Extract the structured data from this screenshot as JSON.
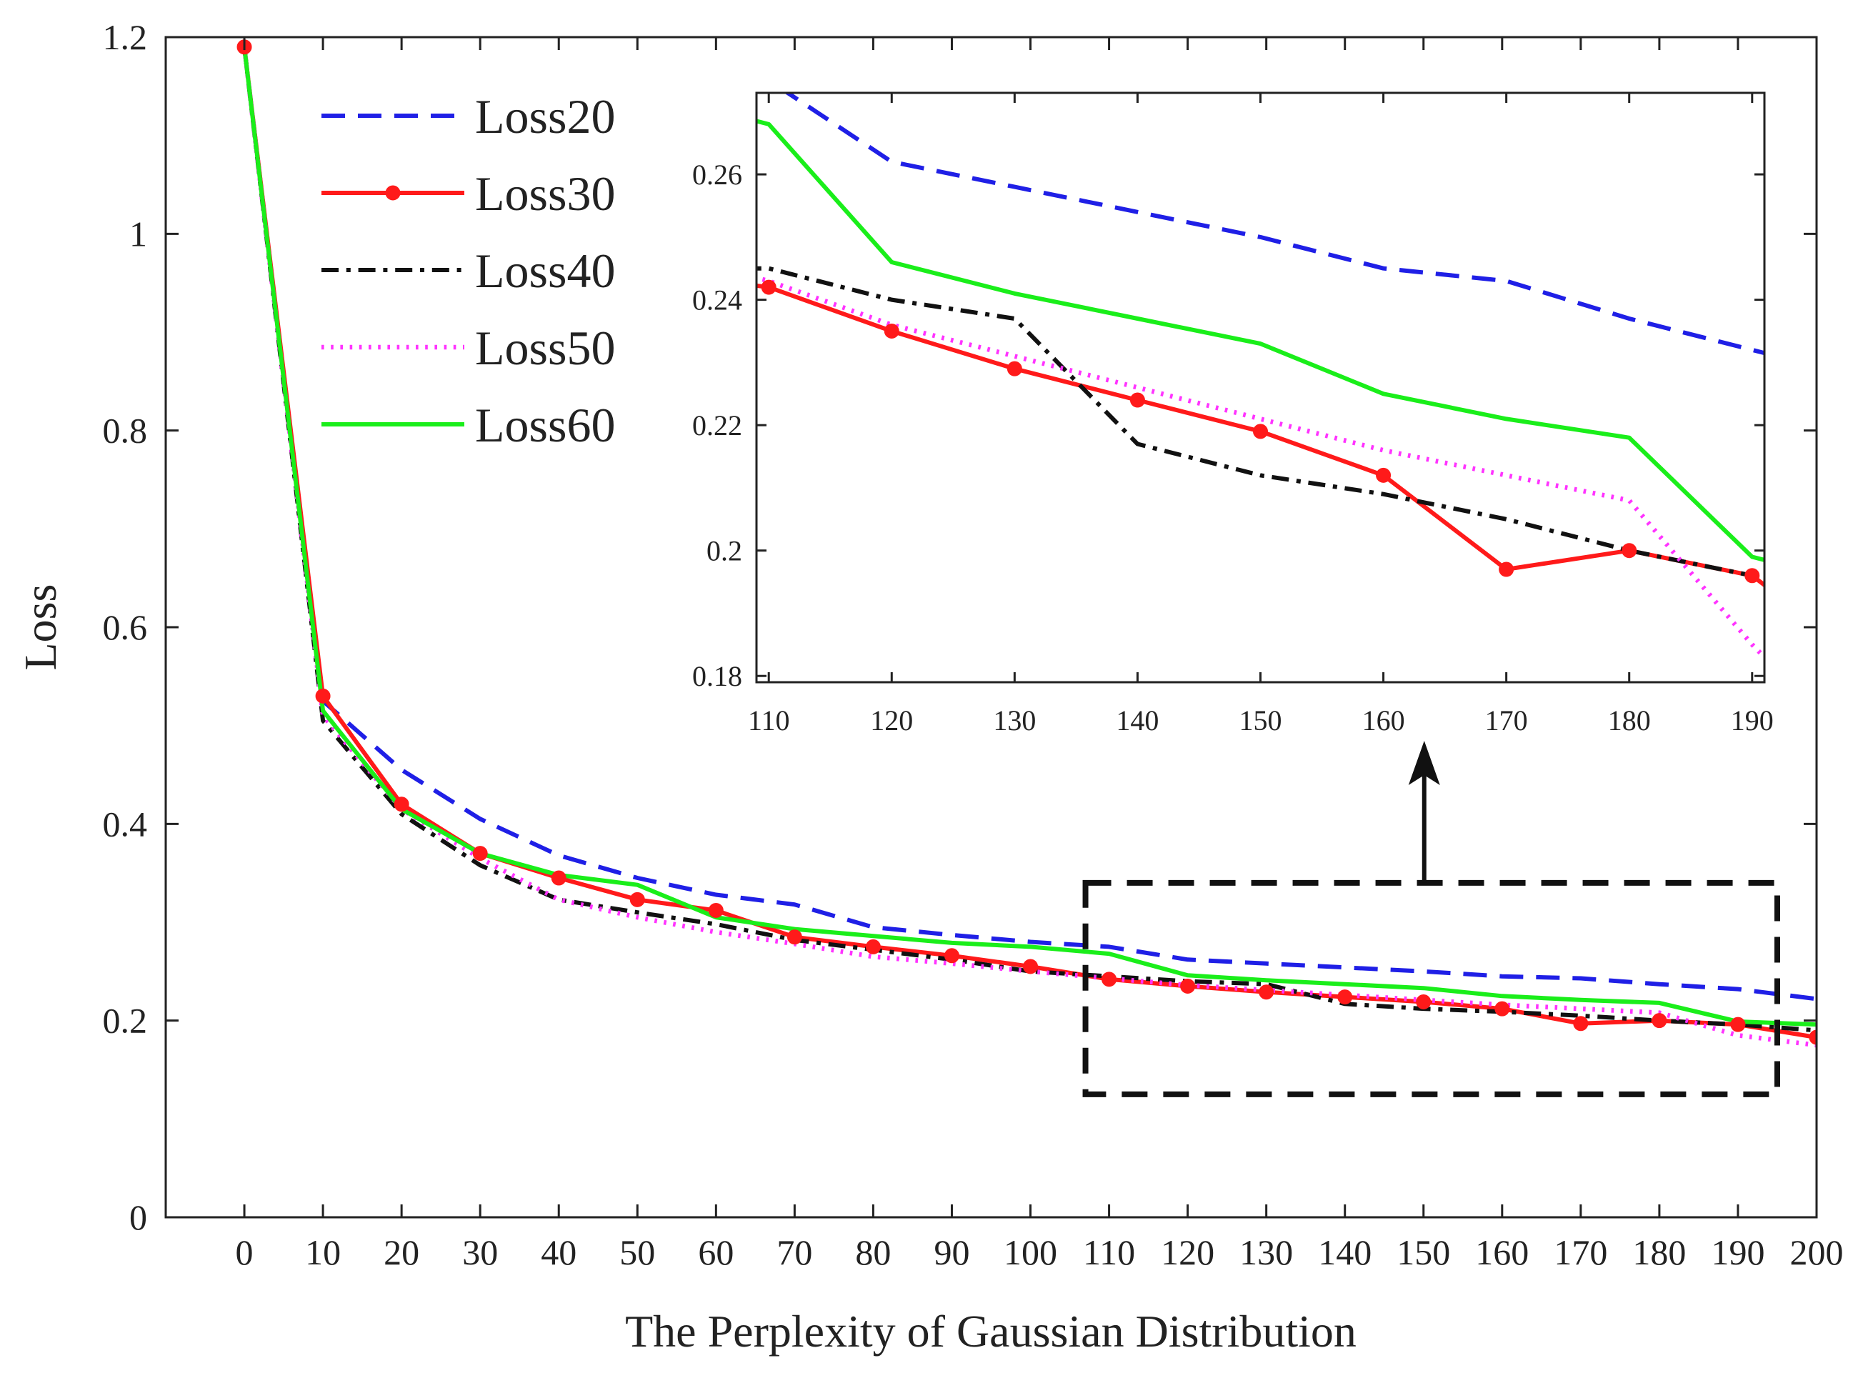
{
  "chart_data": {
    "type": "line",
    "title": "",
    "xlabel": "The Perplexity of Gaussian Distribution",
    "ylabel": "Loss",
    "xlim": [
      -10,
      200
    ],
    "ylim": [
      0,
      1.2
    ],
    "x": [
      0,
      10,
      20,
      30,
      40,
      50,
      60,
      70,
      80,
      90,
      100,
      110,
      120,
      130,
      140,
      150,
      160,
      170,
      180,
      190,
      200
    ],
    "xticks": [
      "0",
      "10",
      "20",
      "30",
      "40",
      "50",
      "60",
      "70",
      "80",
      "90",
      "100",
      "110",
      "120",
      "130",
      "140",
      "150",
      "160",
      "170",
      "180",
      "190",
      "200"
    ],
    "yticks": [
      "0",
      "0.2",
      "0.4",
      "0.6",
      "0.8",
      "1",
      "1.2"
    ],
    "series": [
      {
        "name": "Loss20",
        "color": "#1f1fe6",
        "style": "dashed",
        "values": [
          1.19,
          0.525,
          0.455,
          0.405,
          0.368,
          0.345,
          0.328,
          0.318,
          0.295,
          0.287,
          0.28,
          0.275,
          0.262,
          0.258,
          0.254,
          0.25,
          0.245,
          0.243,
          0.237,
          0.232,
          0.222
        ]
      },
      {
        "name": "Loss30",
        "color": "#ff1a1a",
        "style": "solid-marker",
        "values": [
          1.19,
          0.53,
          0.42,
          0.37,
          0.345,
          0.323,
          0.312,
          0.285,
          0.275,
          0.266,
          0.255,
          0.242,
          0.235,
          0.229,
          0.224,
          0.219,
          0.212,
          0.197,
          0.2,
          0.196,
          0.183
        ]
      },
      {
        "name": "Loss40",
        "color": "#111111",
        "style": "dashdot",
        "values": [
          1.19,
          0.505,
          0.41,
          0.358,
          0.323,
          0.31,
          0.298,
          0.282,
          0.272,
          0.262,
          0.25,
          0.245,
          0.24,
          0.237,
          0.217,
          0.212,
          0.209,
          0.205,
          0.2,
          0.196,
          0.19
        ]
      },
      {
        "name": "Loss50",
        "color": "#ff33ff",
        "style": "dotted",
        "values": [
          1.19,
          0.51,
          0.415,
          0.365,
          0.323,
          0.305,
          0.29,
          0.278,
          0.265,
          0.258,
          0.25,
          0.243,
          0.236,
          0.231,
          0.226,
          0.221,
          0.216,
          0.212,
          0.208,
          0.185,
          0.175
        ]
      },
      {
        "name": "Loss60",
        "color": "#1aee1a",
        "style": "solid",
        "values": [
          1.19,
          0.515,
          0.415,
          0.37,
          0.348,
          0.338,
          0.305,
          0.293,
          0.286,
          0.279,
          0.275,
          0.268,
          0.246,
          0.241,
          0.237,
          0.233,
          0.225,
          0.221,
          0.218,
          0.199,
          0.196
        ]
      }
    ],
    "legend_position": "top-left",
    "inset": {
      "xlim": [
        109,
        191
      ],
      "ylim": [
        0.179,
        0.273
      ],
      "xticks": [
        "110",
        "120",
        "130",
        "140",
        "150",
        "160",
        "170",
        "180",
        "190"
      ],
      "yticks": [
        "0.18",
        "0.2",
        "0.22",
        "0.24",
        "0.26"
      ],
      "x": [
        108,
        110,
        120,
        130,
        140,
        150,
        160,
        170,
        180,
        190,
        192
      ],
      "series": [
        {
          "name": "Loss20",
          "values": [
            0.276,
            0.275,
            0.262,
            0.258,
            0.254,
            0.25,
            0.245,
            0.243,
            0.237,
            0.232,
            0.231
          ]
        },
        {
          "name": "Loss30",
          "values": [
            0.2425,
            0.242,
            0.235,
            0.229,
            0.224,
            0.219,
            0.212,
            0.197,
            0.2,
            0.196,
            0.193
          ]
        },
        {
          "name": "Loss40",
          "values": [
            0.245,
            0.245,
            0.24,
            0.237,
            0.217,
            0.212,
            0.209,
            0.205,
            0.2,
            0.196,
            0.195
          ]
        },
        {
          "name": "Loss50",
          "values": [
            0.244,
            0.243,
            0.236,
            0.231,
            0.226,
            0.221,
            0.216,
            0.212,
            0.208,
            0.185,
            0.181
          ]
        },
        {
          "name": "Loss60",
          "values": [
            0.269,
            0.268,
            0.246,
            0.241,
            0.237,
            0.233,
            0.225,
            0.221,
            0.218,
            0.199,
            0.198
          ]
        }
      ],
      "zoom_region": {
        "x": [
          107,
          195
        ],
        "y": [
          0.125,
          0.34
        ]
      }
    }
  }
}
